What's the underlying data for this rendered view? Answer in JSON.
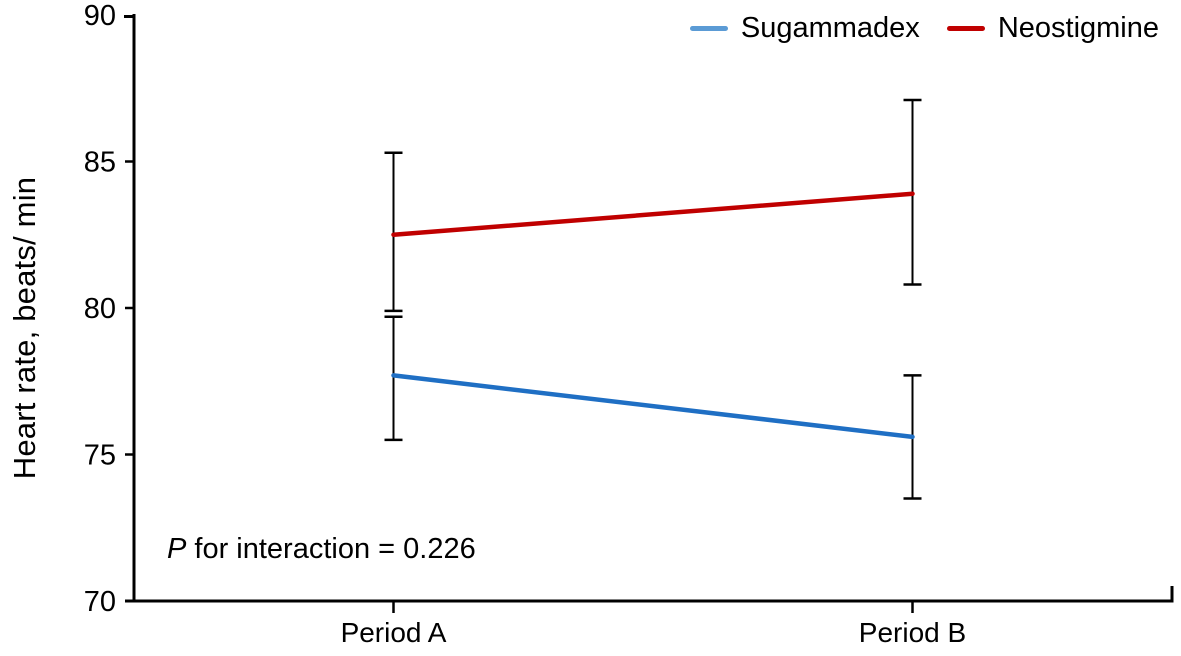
{
  "chart_data": {
    "type": "line",
    "title": "",
    "xlabel": "",
    "ylabel": "Heart rate, beats/ min",
    "categories": [
      "Period A",
      "Period B"
    ],
    "series": [
      {
        "name": "Sugammadex",
        "color": "#1F6FC4",
        "legend_color": "#5B9BD5",
        "values": [
          77.7,
          75.6
        ],
        "ci_low": [
          75.5,
          73.5
        ],
        "ci_high": [
          79.7,
          77.7
        ]
      },
      {
        "name": "Neostigmine",
        "color": "#C00000",
        "legend_color": "#C00000",
        "values": [
          82.5,
          83.9
        ],
        "ci_low": [
          79.9,
          80.8
        ],
        "ci_high": [
          85.3,
          87.1
        ]
      }
    ],
    "ylim": [
      70,
      90
    ],
    "yticks": [
      70,
      75,
      80,
      85,
      90
    ],
    "grid": false,
    "error_bars": true,
    "error_bar_color": "#000000",
    "axis_color": "#000000",
    "legend_position": "top-right",
    "annotation": {
      "p_symbol": "P",
      "rest": " for interaction = 0.226"
    }
  }
}
